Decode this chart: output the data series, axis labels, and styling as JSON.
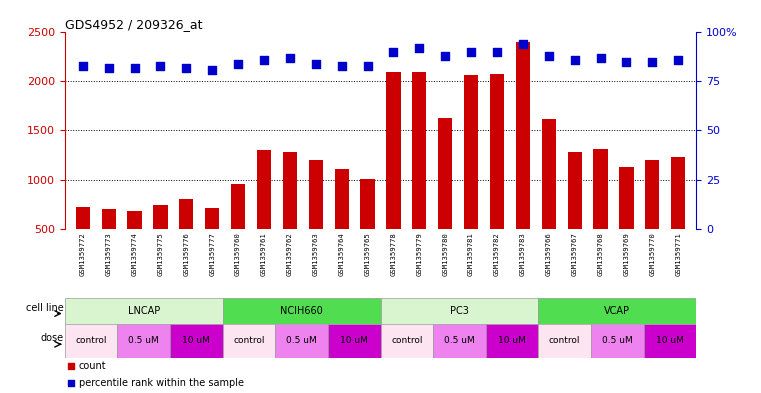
{
  "title": "GDS4952 / 209326_at",
  "samples": [
    "GSM1359772",
    "GSM1359773",
    "GSM1359774",
    "GSM1359775",
    "GSM1359776",
    "GSM1359777",
    "GSM1359760",
    "GSM1359761",
    "GSM1359762",
    "GSM1359763",
    "GSM1359764",
    "GSM1359765",
    "GSM1359778",
    "GSM1359779",
    "GSM1359780",
    "GSM1359781",
    "GSM1359782",
    "GSM1359783",
    "GSM1359766",
    "GSM1359767",
    "GSM1359768",
    "GSM1359769",
    "GSM1359770",
    "GSM1359771"
  ],
  "counts": [
    720,
    700,
    680,
    740,
    800,
    710,
    960,
    1300,
    1280,
    1200,
    1110,
    1010,
    2100,
    2100,
    1630,
    2060,
    2070,
    2400,
    1620,
    1280,
    1310,
    1130,
    1200,
    1230
  ],
  "percentile_ranks": [
    83,
    82,
    82,
    83,
    82,
    81,
    84,
    86,
    87,
    84,
    83,
    83,
    90,
    92,
    88,
    90,
    90,
    94,
    88,
    86,
    87,
    85,
    85,
    86
  ],
  "cell_lines": [
    {
      "name": "LNCAP",
      "start": 0,
      "end": 6,
      "color": "#d8f5d0"
    },
    {
      "name": "NCIH660",
      "start": 6,
      "end": 12,
      "color": "#50dd50"
    },
    {
      "name": "PC3",
      "start": 12,
      "end": 18,
      "color": "#d8f5d0"
    },
    {
      "name": "VCAP",
      "start": 18,
      "end": 24,
      "color": "#50dd50"
    }
  ],
  "doses": [
    {
      "label": "control",
      "start": 0,
      "end": 2,
      "color": "#fce4f0"
    },
    {
      "label": "0.5 uM",
      "start": 2,
      "end": 4,
      "color": "#ee82ee"
    },
    {
      "label": "10 uM",
      "start": 4,
      "end": 6,
      "color": "#cc00cc"
    },
    {
      "label": "control",
      "start": 6,
      "end": 8,
      "color": "#fce4f0"
    },
    {
      "label": "0.5 uM",
      "start": 8,
      "end": 10,
      "color": "#ee82ee"
    },
    {
      "label": "10 uM",
      "start": 10,
      "end": 12,
      "color": "#cc00cc"
    },
    {
      "label": "control",
      "start": 12,
      "end": 14,
      "color": "#fce4f0"
    },
    {
      "label": "0.5 uM",
      "start": 14,
      "end": 16,
      "color": "#ee82ee"
    },
    {
      "label": "10 uM",
      "start": 16,
      "end": 18,
      "color": "#cc00cc"
    },
    {
      "label": "control",
      "start": 18,
      "end": 20,
      "color": "#fce4f0"
    },
    {
      "label": "0.5 uM",
      "start": 20,
      "end": 22,
      "color": "#ee82ee"
    },
    {
      "label": "10 uM",
      "start": 22,
      "end": 24,
      "color": "#cc00cc"
    }
  ],
  "ylim_left": [
    500,
    2500
  ],
  "ylim_right": [
    0,
    100
  ],
  "yticks_left": [
    500,
    1000,
    1500,
    2000,
    2500
  ],
  "yticks_right": [
    0,
    25,
    50,
    75,
    100
  ],
  "bar_color": "#cc0000",
  "dot_color": "#0000cc",
  "bar_width": 0.55,
  "dot_size": 35,
  "xtick_bg": "#cccccc",
  "count_label": "count",
  "percentile_label": "percentile rank within the sample"
}
